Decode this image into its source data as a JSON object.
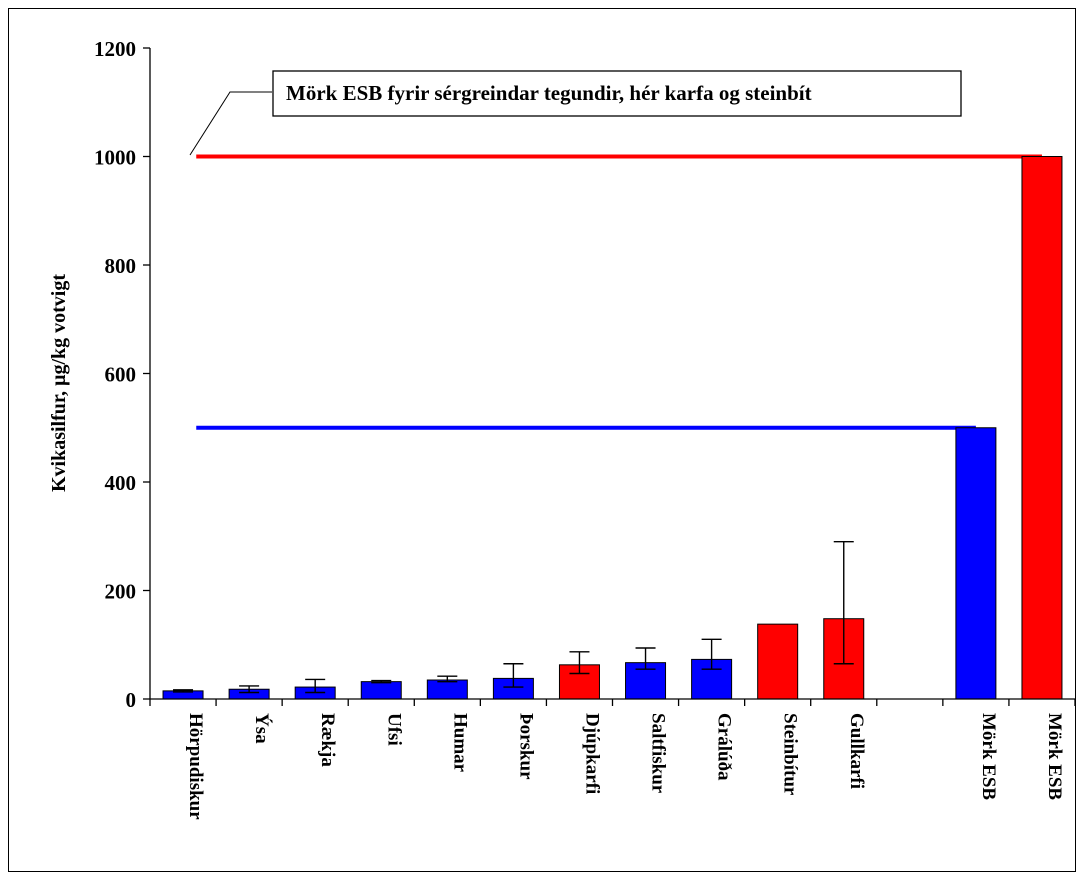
{
  "chart_data": {
    "type": "bar",
    "ylabel": "Kvikasilfur, µg/kg votvigt",
    "ylim": [
      0,
      1200
    ],
    "yticks": [
      0,
      200,
      400,
      600,
      800,
      1000,
      1200
    ],
    "categories": [
      "Hörpudiskur",
      "Ýsa",
      "Rækja",
      "Ufsi",
      "Humar",
      "Þorskur",
      "Djúpkarfi",
      "Saltfiskur",
      "Grálúða",
      "Steinbítur",
      "Gullkarfi",
      "",
      "Mörk ESB",
      "Mörk ESB"
    ],
    "values": [
      15,
      18,
      22,
      32,
      35,
      38,
      63,
      67,
      73,
      138,
      148,
      null,
      500,
      1000
    ],
    "error_low": [
      13,
      12,
      12,
      30,
      32,
      22,
      47,
      55,
      55,
      null,
      65,
      null,
      null,
      null
    ],
    "error_high": [
      17,
      24,
      36,
      34,
      42,
      65,
      87,
      94,
      110,
      null,
      290,
      null,
      null,
      null
    ],
    "bar_colors": [
      "#0000ff",
      "#0000ff",
      "#0000ff",
      "#0000ff",
      "#0000ff",
      "#0000ff",
      "#ff0000",
      "#0000ff",
      "#0000ff",
      "#ff0000",
      "#ff0000",
      null,
      "#0000ff",
      "#ff0000"
    ],
    "reference_lines": [
      {
        "value": 500,
        "color": "#0000ff"
      },
      {
        "value": 1000,
        "color": "#ff0000"
      }
    ],
    "annotation": "Mörk ESB fyrir sérgreindar tegundir, hér karfa og steinbít",
    "grid": false,
    "legend": "none"
  }
}
